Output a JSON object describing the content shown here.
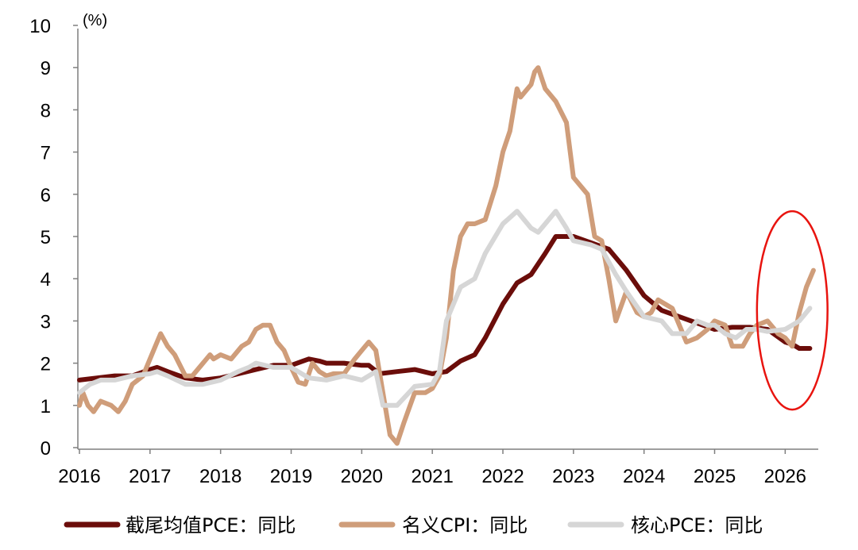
{
  "chart_data": {
    "type": "line",
    "title": "",
    "unit_label": "(%)",
    "xlabel": "",
    "ylabel": "",
    "ylim": [
      0,
      10
    ],
    "xlim": [
      2016.0,
      2026.3
    ],
    "y_ticks": [
      "0",
      "1",
      "2",
      "3",
      "4",
      "5",
      "6",
      "7",
      "8",
      "9",
      "10"
    ],
    "x_ticks": [
      "2016",
      "2017",
      "2018",
      "2019",
      "2020",
      "2021",
      "2022",
      "2023",
      "2024",
      "2025",
      "2026"
    ],
    "grid": false,
    "legend_position": "bottom",
    "highlight": {
      "shape": "ellipse",
      "color": "#e8140f",
      "x_range": [
        2025.6,
        2026.6
      ],
      "y_range": [
        0.9,
        5.6
      ]
    },
    "series": [
      {
        "name": "截尾均值PCE：同比",
        "color": "#6b0d0a",
        "points": [
          [
            2016.0,
            1.6
          ],
          [
            2016.25,
            1.65
          ],
          [
            2016.5,
            1.7
          ],
          [
            2016.75,
            1.7
          ],
          [
            2017.0,
            1.85
          ],
          [
            2017.1,
            1.9
          ],
          [
            2017.25,
            1.8
          ],
          [
            2017.5,
            1.65
          ],
          [
            2017.75,
            1.6
          ],
          [
            2018.0,
            1.65
          ],
          [
            2018.25,
            1.75
          ],
          [
            2018.5,
            1.85
          ],
          [
            2018.75,
            1.95
          ],
          [
            2019.0,
            1.95
          ],
          [
            2019.25,
            2.1
          ],
          [
            2019.4,
            2.05
          ],
          [
            2019.5,
            2.0
          ],
          [
            2019.75,
            2.0
          ],
          [
            2020.0,
            1.95
          ],
          [
            2020.1,
            1.95
          ],
          [
            2020.25,
            1.75
          ],
          [
            2020.5,
            1.8
          ],
          [
            2020.75,
            1.85
          ],
          [
            2021.0,
            1.75
          ],
          [
            2021.2,
            1.8
          ],
          [
            2021.4,
            2.05
          ],
          [
            2021.6,
            2.2
          ],
          [
            2021.75,
            2.6
          ],
          [
            2022.0,
            3.4
          ],
          [
            2022.2,
            3.9
          ],
          [
            2022.4,
            4.1
          ],
          [
            2022.6,
            4.6
          ],
          [
            2022.75,
            5.0
          ],
          [
            2023.0,
            5.0
          ],
          [
            2023.25,
            4.85
          ],
          [
            2023.5,
            4.7
          ],
          [
            2023.75,
            4.2
          ],
          [
            2024.0,
            3.6
          ],
          [
            2024.25,
            3.25
          ],
          [
            2024.5,
            3.1
          ],
          [
            2024.75,
            2.95
          ],
          [
            2025.0,
            2.8
          ],
          [
            2025.25,
            2.85
          ],
          [
            2025.5,
            2.85
          ],
          [
            2025.75,
            2.8
          ],
          [
            2026.0,
            2.5
          ],
          [
            2026.1,
            2.45
          ],
          [
            2026.2,
            2.35
          ],
          [
            2026.35,
            2.35
          ]
        ]
      },
      {
        "name": "名义CPI：同比",
        "color": "#cf9d7a",
        "points": [
          [
            2016.0,
            1.0
          ],
          [
            2016.05,
            1.3
          ],
          [
            2016.12,
            1.0
          ],
          [
            2016.2,
            0.85
          ],
          [
            2016.3,
            1.1
          ],
          [
            2016.45,
            1.0
          ],
          [
            2016.55,
            0.85
          ],
          [
            2016.65,
            1.1
          ],
          [
            2016.75,
            1.5
          ],
          [
            2016.9,
            1.7
          ],
          [
            2017.0,
            2.1
          ],
          [
            2017.1,
            2.5
          ],
          [
            2017.15,
            2.7
          ],
          [
            2017.25,
            2.4
          ],
          [
            2017.35,
            2.2
          ],
          [
            2017.5,
            1.7
          ],
          [
            2017.6,
            1.7
          ],
          [
            2017.75,
            2.0
          ],
          [
            2017.85,
            2.2
          ],
          [
            2017.9,
            2.1
          ],
          [
            2018.0,
            2.2
          ],
          [
            2018.15,
            2.1
          ],
          [
            2018.3,
            2.4
          ],
          [
            2018.4,
            2.5
          ],
          [
            2018.5,
            2.8
          ],
          [
            2018.6,
            2.9
          ],
          [
            2018.7,
            2.9
          ],
          [
            2018.8,
            2.5
          ],
          [
            2018.9,
            2.3
          ],
          [
            2019.0,
            1.9
          ],
          [
            2019.1,
            1.55
          ],
          [
            2019.2,
            1.5
          ],
          [
            2019.3,
            2.0
          ],
          [
            2019.4,
            1.8
          ],
          [
            2019.5,
            1.7
          ],
          [
            2019.6,
            1.75
          ],
          [
            2019.75,
            1.75
          ],
          [
            2019.9,
            2.1
          ],
          [
            2020.0,
            2.3
          ],
          [
            2020.1,
            2.5
          ],
          [
            2020.2,
            2.3
          ],
          [
            2020.3,
            1.3
          ],
          [
            2020.4,
            0.3
          ],
          [
            2020.5,
            0.1
          ],
          [
            2020.6,
            0.6
          ],
          [
            2020.75,
            1.3
          ],
          [
            2020.9,
            1.3
          ],
          [
            2021.0,
            1.4
          ],
          [
            2021.1,
            1.7
          ],
          [
            2021.2,
            2.6
          ],
          [
            2021.3,
            4.2
          ],
          [
            2021.4,
            5.0
          ],
          [
            2021.5,
            5.3
          ],
          [
            2021.6,
            5.3
          ],
          [
            2021.75,
            5.4
          ],
          [
            2021.9,
            6.2
          ],
          [
            2022.0,
            7.0
          ],
          [
            2022.1,
            7.5
          ],
          [
            2022.2,
            8.5
          ],
          [
            2022.25,
            8.3
          ],
          [
            2022.4,
            8.6
          ],
          [
            2022.45,
            8.9
          ],
          [
            2022.5,
            9.0
          ],
          [
            2022.6,
            8.5
          ],
          [
            2022.75,
            8.2
          ],
          [
            2022.9,
            7.7
          ],
          [
            2023.0,
            6.4
          ],
          [
            2023.2,
            6.0
          ],
          [
            2023.3,
            5.0
          ],
          [
            2023.4,
            4.9
          ],
          [
            2023.5,
            4.0
          ],
          [
            2023.6,
            3.0
          ],
          [
            2023.75,
            3.7
          ],
          [
            2023.9,
            3.2
          ],
          [
            2024.0,
            3.1
          ],
          [
            2024.1,
            3.2
          ],
          [
            2024.2,
            3.5
          ],
          [
            2024.4,
            3.3
          ],
          [
            2024.5,
            2.9
          ],
          [
            2024.6,
            2.5
          ],
          [
            2024.75,
            2.6
          ],
          [
            2024.9,
            2.8
          ],
          [
            2025.0,
            3.0
          ],
          [
            2025.15,
            2.9
          ],
          [
            2025.25,
            2.4
          ],
          [
            2025.4,
            2.4
          ],
          [
            2025.5,
            2.7
          ],
          [
            2025.6,
            2.9
          ],
          [
            2025.75,
            3.0
          ],
          [
            2025.9,
            2.7
          ],
          [
            2026.0,
            2.6
          ],
          [
            2026.1,
            2.4
          ],
          [
            2026.2,
            3.2
          ],
          [
            2026.3,
            3.8
          ],
          [
            2026.4,
            4.2
          ]
        ]
      },
      {
        "name": "核心PCE：同比",
        "color": "#d6d6d6",
        "points": [
          [
            2016.0,
            1.3
          ],
          [
            2016.15,
            1.5
          ],
          [
            2016.3,
            1.6
          ],
          [
            2016.5,
            1.6
          ],
          [
            2016.75,
            1.7
          ],
          [
            2017.0,
            1.75
          ],
          [
            2017.1,
            1.8
          ],
          [
            2017.25,
            1.7
          ],
          [
            2017.5,
            1.5
          ],
          [
            2017.75,
            1.5
          ],
          [
            2018.0,
            1.6
          ],
          [
            2018.25,
            1.8
          ],
          [
            2018.4,
            1.9
          ],
          [
            2018.5,
            2.0
          ],
          [
            2018.75,
            1.9
          ],
          [
            2019.0,
            1.9
          ],
          [
            2019.25,
            1.65
          ],
          [
            2019.5,
            1.6
          ],
          [
            2019.75,
            1.7
          ],
          [
            2020.0,
            1.6
          ],
          [
            2020.2,
            1.8
          ],
          [
            2020.3,
            1.0
          ],
          [
            2020.5,
            1.0
          ],
          [
            2020.75,
            1.45
          ],
          [
            2021.0,
            1.5
          ],
          [
            2021.1,
            1.8
          ],
          [
            2021.2,
            3.0
          ],
          [
            2021.4,
            3.8
          ],
          [
            2021.6,
            4.0
          ],
          [
            2021.75,
            4.6
          ],
          [
            2022.0,
            5.3
          ],
          [
            2022.2,
            5.6
          ],
          [
            2022.4,
            5.2
          ],
          [
            2022.5,
            5.1
          ],
          [
            2022.75,
            5.6
          ],
          [
            2022.9,
            5.2
          ],
          [
            2023.0,
            4.9
          ],
          [
            2023.25,
            4.8
          ],
          [
            2023.4,
            4.7
          ],
          [
            2023.6,
            4.1
          ],
          [
            2023.75,
            3.7
          ],
          [
            2024.0,
            3.1
          ],
          [
            2024.25,
            3.0
          ],
          [
            2024.4,
            2.7
          ],
          [
            2024.6,
            2.7
          ],
          [
            2024.75,
            3.0
          ],
          [
            2024.9,
            2.9
          ],
          [
            2025.0,
            2.9
          ],
          [
            2025.15,
            2.7
          ],
          [
            2025.3,
            2.6
          ],
          [
            2025.45,
            2.8
          ],
          [
            2025.6,
            2.8
          ],
          [
            2025.75,
            2.75
          ],
          [
            2026.0,
            2.8
          ],
          [
            2026.1,
            2.9
          ],
          [
            2026.2,
            3.0
          ],
          [
            2026.35,
            3.3
          ]
        ]
      }
    ]
  }
}
